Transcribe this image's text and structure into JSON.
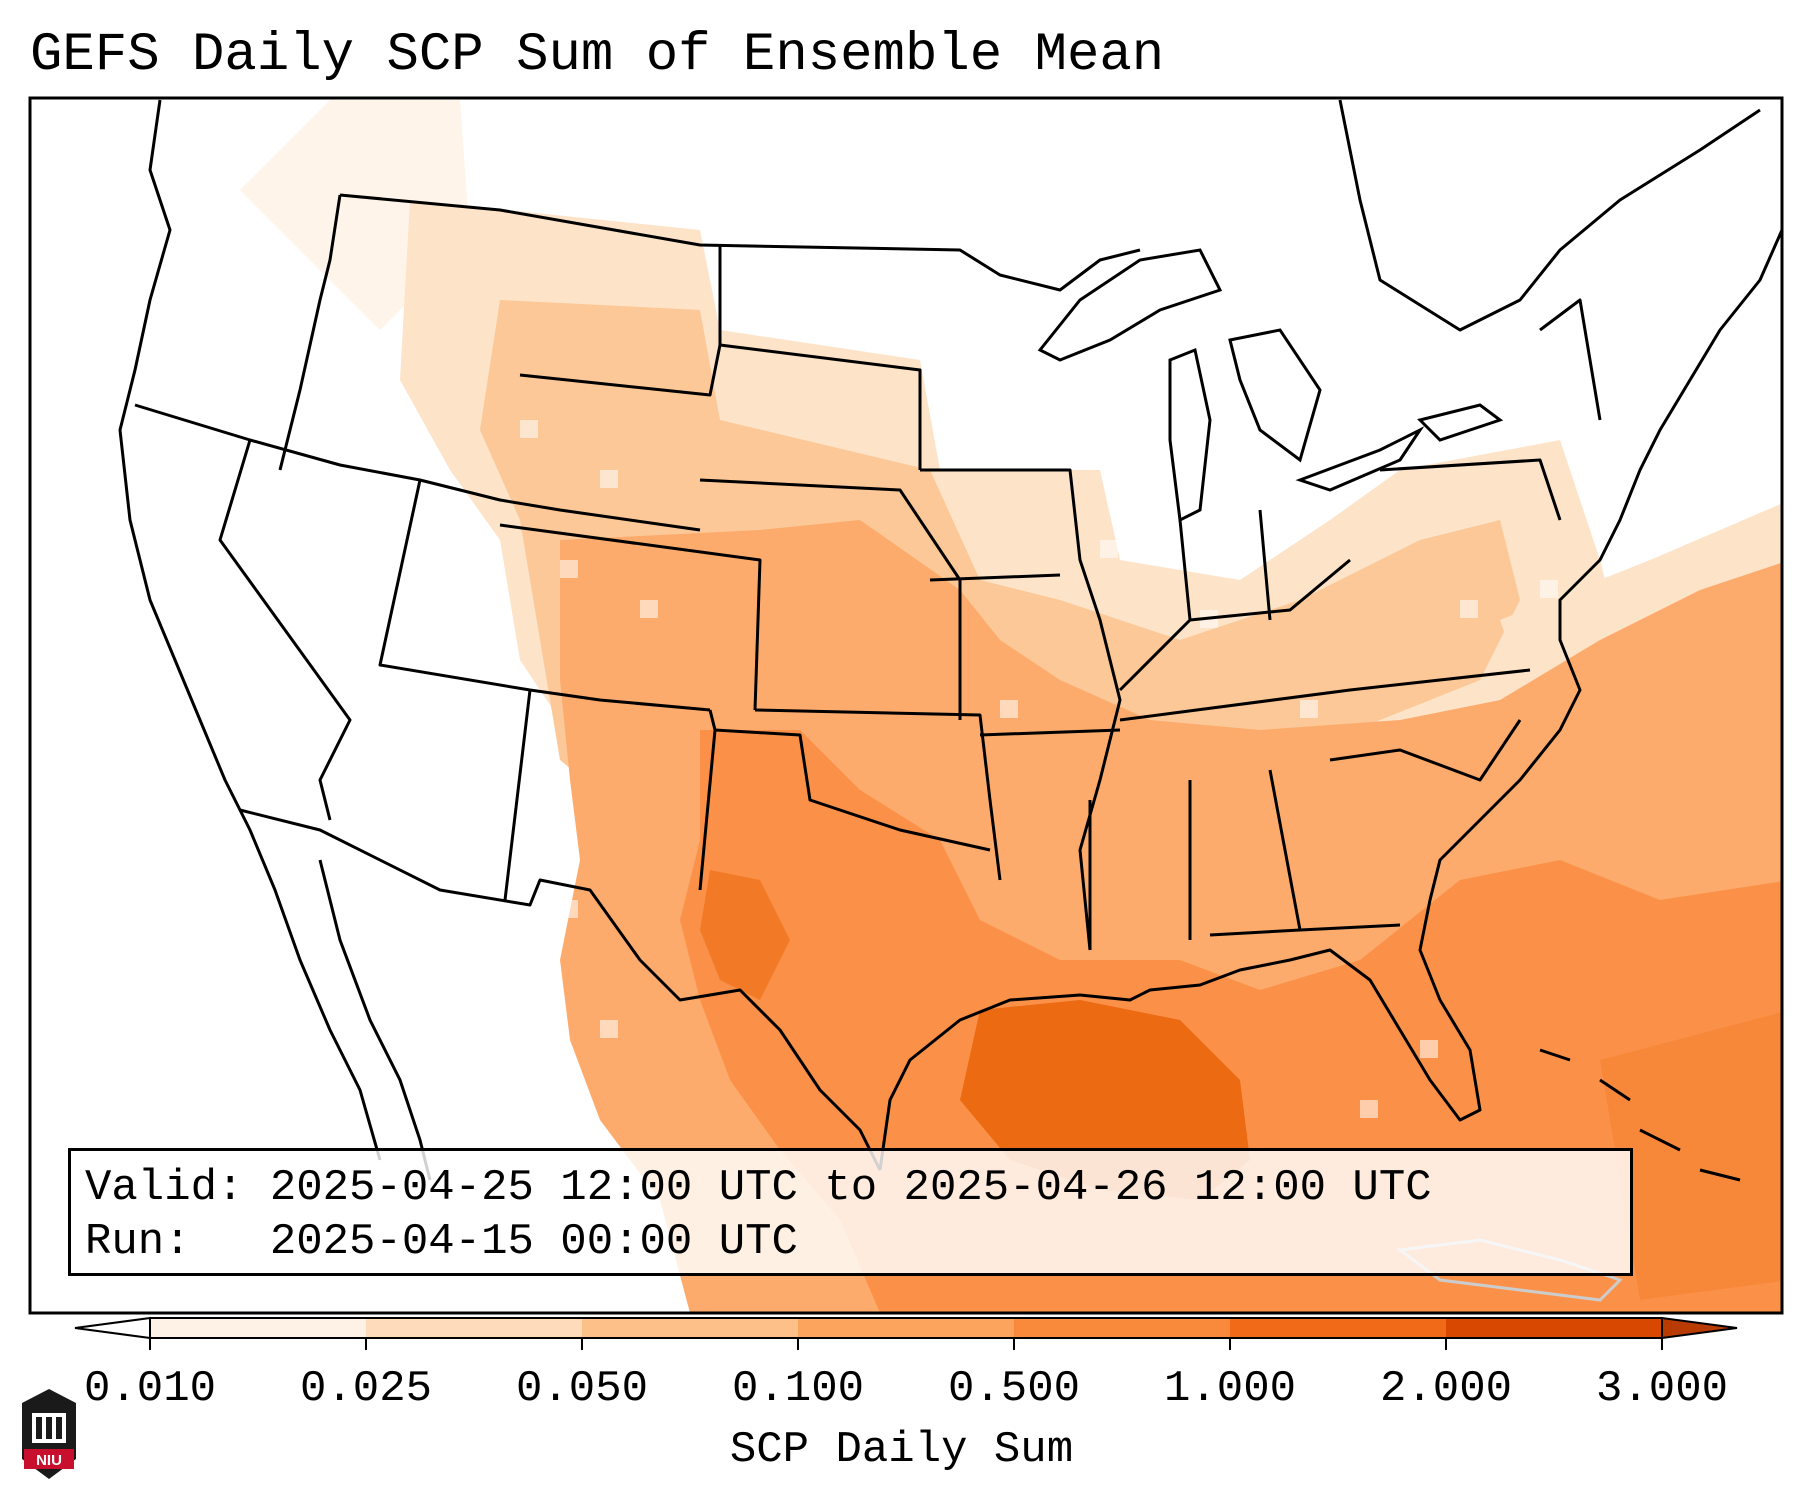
{
  "title": "GEFS Daily SCP Sum of Ensemble Mean",
  "info": {
    "valid_label": "Valid:",
    "valid_value": "2025-04-25 12:00 UTC to 2025-04-26 12:00 UTC",
    "run_label": "Run:",
    "run_value": "2025-04-15 00:00 UTC"
  },
  "colorbar": {
    "label": "SCP Daily Sum",
    "ticks": [
      "0.010",
      "0.025",
      "0.050",
      "0.100",
      "0.500",
      "1.000",
      "2.000",
      "3.000"
    ],
    "colors": [
      "#fef2e6",
      "#fddbbb",
      "#fdc088",
      "#fca45e",
      "#f98a3c",
      "#f06a18",
      "#d94801"
    ],
    "under_color": "#ffffff",
    "over_color": "#b83b00"
  },
  "logo": {
    "text": "NIU",
    "accent": "#c8102e"
  }
}
